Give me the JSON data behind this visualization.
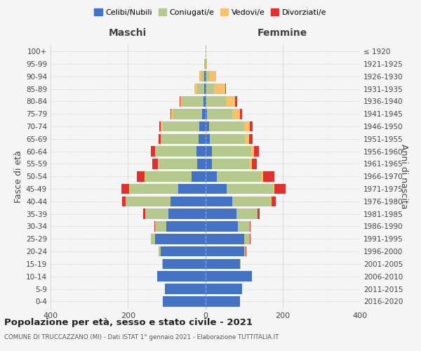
{
  "age_groups": [
    "0-4",
    "5-9",
    "10-14",
    "15-19",
    "20-24",
    "25-29",
    "30-34",
    "35-39",
    "40-44",
    "45-49",
    "50-54",
    "55-59",
    "60-64",
    "65-69",
    "70-74",
    "75-79",
    "80-84",
    "85-89",
    "90-94",
    "95-99",
    "100+"
  ],
  "birth_years": [
    "2016-2020",
    "2011-2015",
    "2006-2010",
    "2001-2005",
    "1996-2000",
    "1991-1995",
    "1986-1990",
    "1981-1985",
    "1976-1980",
    "1971-1975",
    "1966-1970",
    "1961-1965",
    "1956-1960",
    "1951-1955",
    "1946-1950",
    "1941-1945",
    "1936-1940",
    "1931-1935",
    "1926-1930",
    "1921-1925",
    "≤ 1920"
  ],
  "males": {
    "celibi": [
      110,
      105,
      125,
      110,
      115,
      130,
      100,
      95,
      90,
      70,
      35,
      20,
      22,
      18,
      15,
      8,
      5,
      2,
      2,
      0,
      0
    ],
    "coniugati": [
      0,
      0,
      0,
      2,
      5,
      10,
      30,
      60,
      115,
      125,
      120,
      100,
      105,
      95,
      95,
      75,
      55,
      18,
      8,
      2,
      0
    ],
    "vedovi": [
      0,
      0,
      0,
      0,
      0,
      0,
      0,
      0,
      0,
      2,
      2,
      2,
      3,
      3,
      5,
      5,
      5,
      8,
      5,
      1,
      0
    ],
    "divorziati": [
      0,
      0,
      0,
      0,
      0,
      0,
      2,
      5,
      10,
      20,
      20,
      15,
      10,
      5,
      3,
      2,
      2,
      0,
      0,
      0,
      0
    ]
  },
  "females": {
    "nubili": [
      90,
      95,
      120,
      90,
      100,
      100,
      85,
      80,
      70,
      55,
      30,
      18,
      18,
      12,
      10,
      5,
      3,
      2,
      2,
      0,
      0
    ],
    "coniugate": [
      0,
      0,
      0,
      2,
      5,
      15,
      30,
      55,
      100,
      120,
      115,
      95,
      100,
      90,
      90,
      65,
      50,
      20,
      8,
      2,
      0
    ],
    "vedove": [
      0,
      0,
      0,
      0,
      0,
      0,
      0,
      0,
      2,
      3,
      5,
      8,
      8,
      12,
      15,
      20,
      25,
      30,
      18,
      2,
      0
    ],
    "divorziate": [
      0,
      0,
      0,
      0,
      2,
      2,
      2,
      5,
      10,
      30,
      28,
      12,
      12,
      8,
      8,
      5,
      5,
      2,
      0,
      0,
      0
    ]
  },
  "colors": {
    "celibi": "#4472c4",
    "coniugati": "#b5c98e",
    "vedovi": "#f4c26a",
    "divorziati": "#e03030"
  },
  "xlim": 400,
  "title": "Popolazione per età, sesso e stato civile - 2021",
  "subtitle": "COMUNE DI TRUCCAZZANO (MI) - Dati ISTAT 1° gennaio 2021 - Elaborazione TUTTITALIA.IT",
  "ylabel_left": "Fasce di età",
  "ylabel_right": "Anni di nascita",
  "xlabel_left": "Maschi",
  "xlabel_right": "Femmine",
  "legend_labels": [
    "Celibi/Nubili",
    "Coniugati/e",
    "Vedovi/e",
    "Divorziati/e"
  ],
  "bg_color": "#f5f5f5",
  "grid_color": "#cccccc"
}
